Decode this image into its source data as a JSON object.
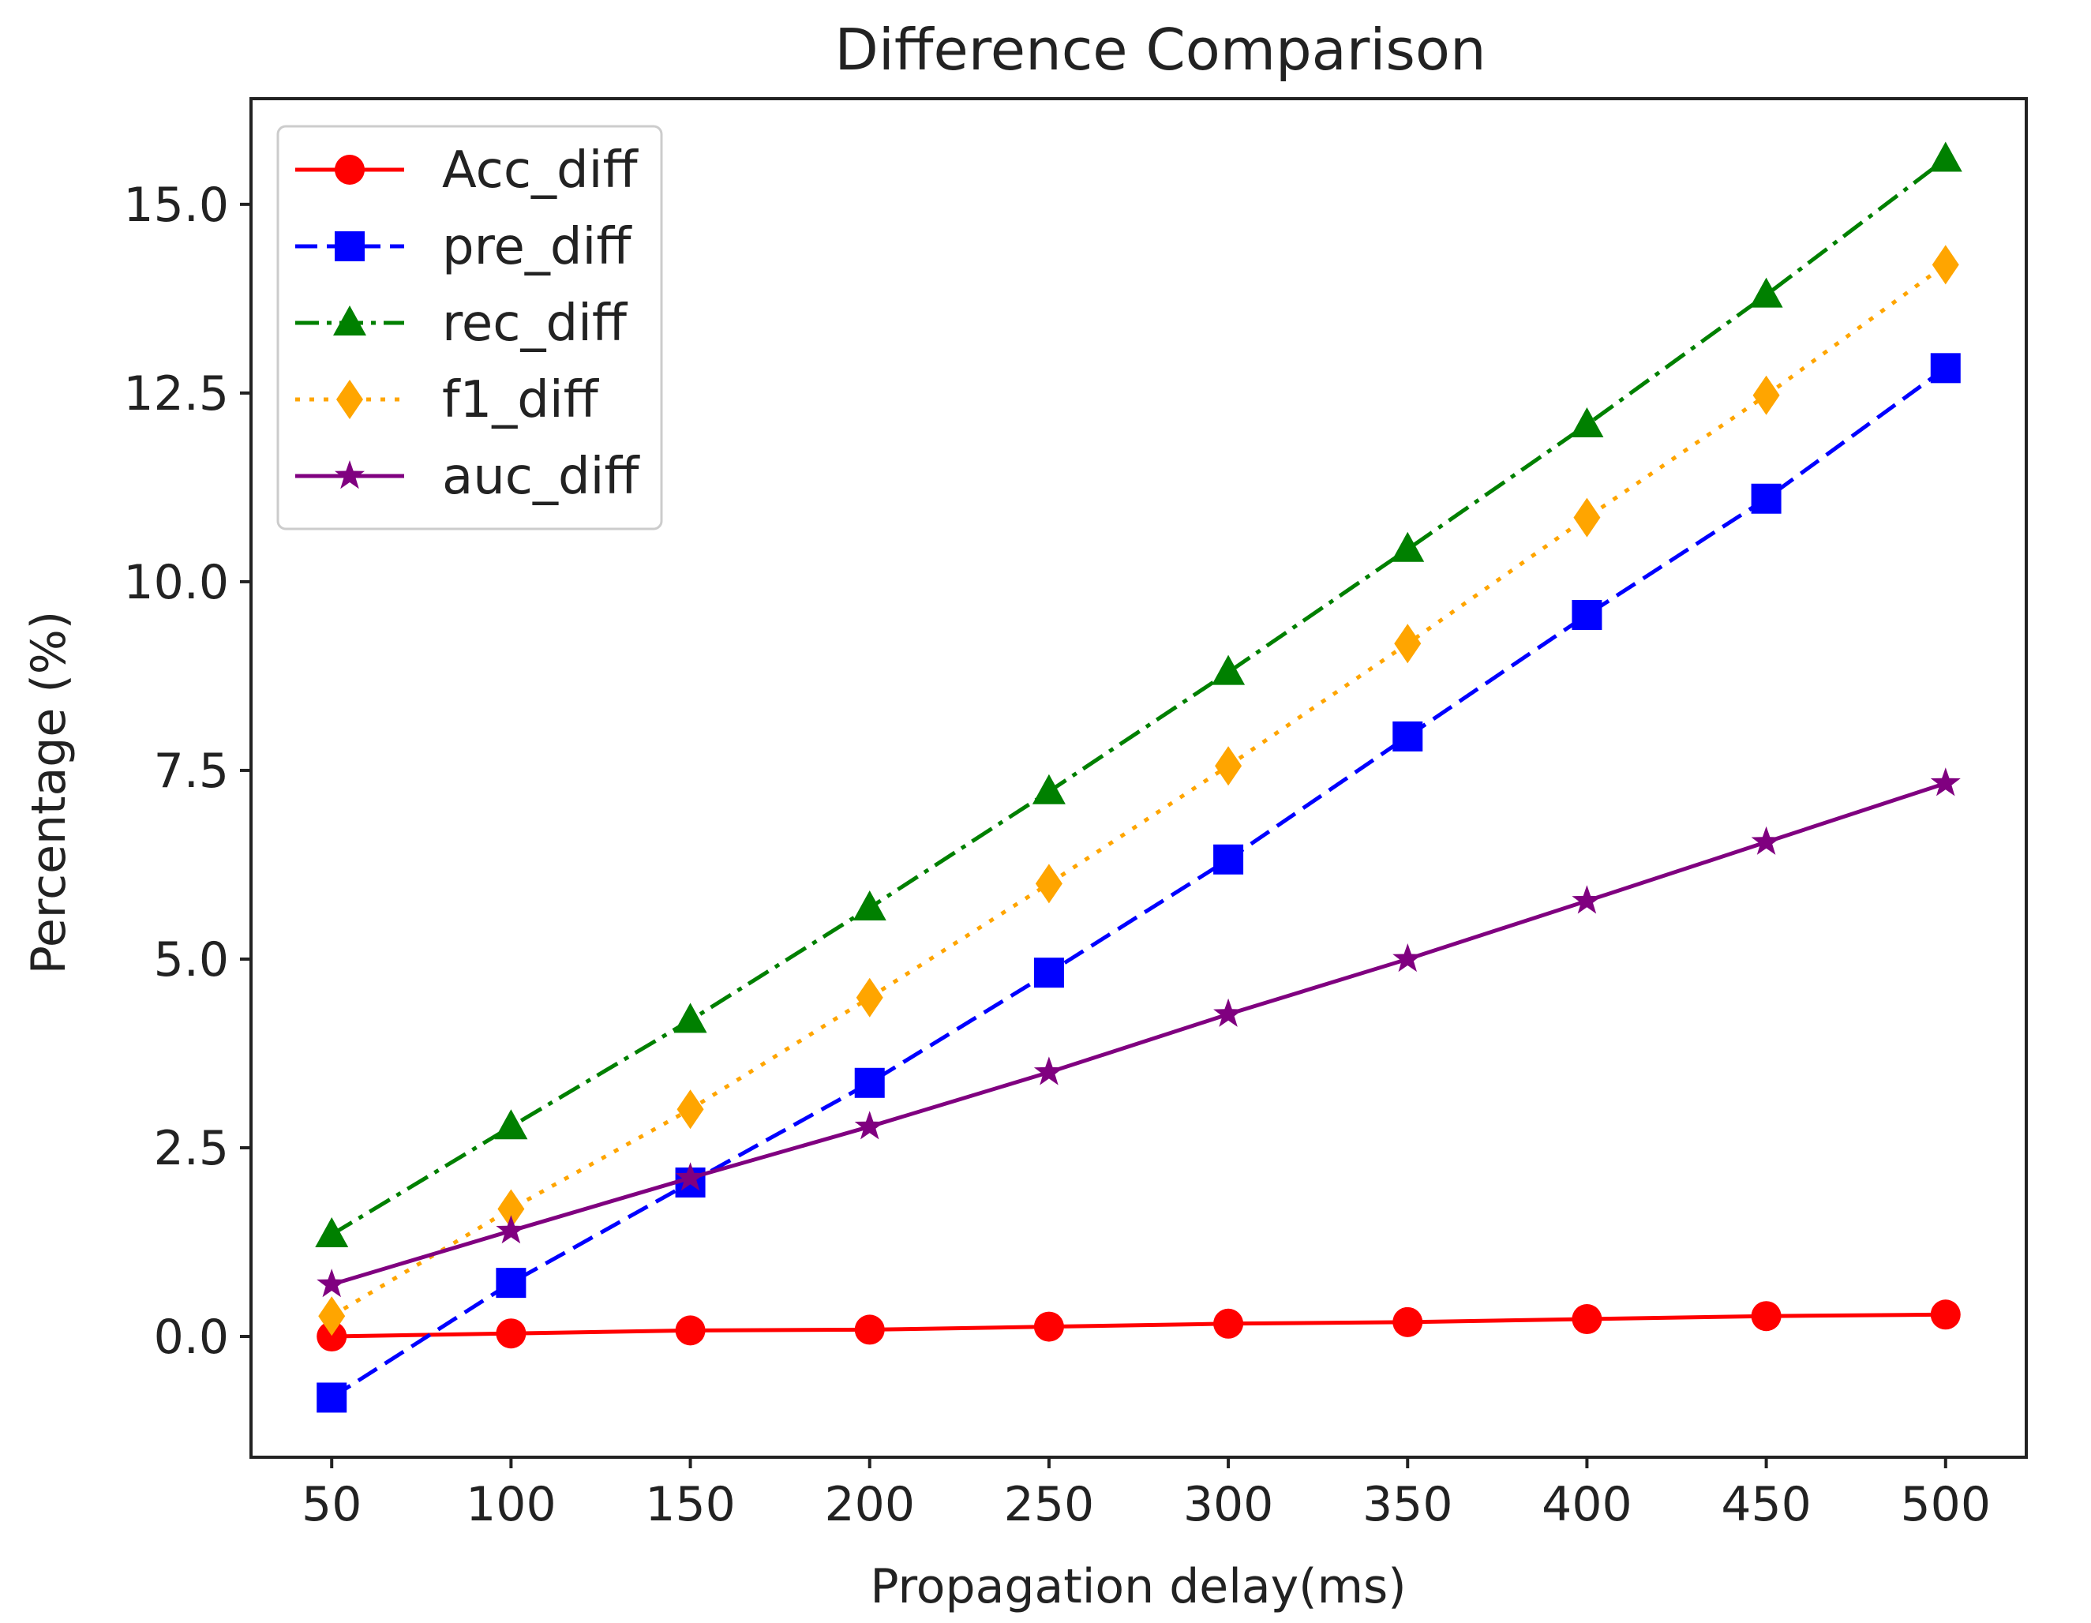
{
  "chart_data": {
    "type": "line",
    "title": "Difference Comparison",
    "xlabel": "Propagation delay(ms)",
    "ylabel": "Percentage (%)",
    "x": [
      50,
      100,
      150,
      200,
      250,
      300,
      350,
      400,
      450,
      500
    ],
    "x_tick_labels": [
      "50",
      "100",
      "150",
      "200",
      "250",
      "300",
      "350",
      "400",
      "450",
      "500"
    ],
    "y_ticks": [
      0.0,
      2.5,
      5.0,
      7.5,
      10.0,
      12.5,
      15.0
    ],
    "y_tick_labels": [
      "0.0",
      "2.5",
      "5.0",
      "7.5",
      "10.0",
      "12.5",
      "15.0"
    ],
    "xlim": [
      27.5,
      522.5
    ],
    "ylim": [
      -1.6,
      16.4
    ],
    "grid": false,
    "legend_position": "upper-left",
    "series": [
      {
        "name": "Acc_diff",
        "color": "#ff0000",
        "line_style": "solid",
        "marker": "circle",
        "values": [
          0.0,
          0.04,
          0.08,
          0.09,
          0.13,
          0.17,
          0.19,
          0.23,
          0.27,
          0.29
        ]
      },
      {
        "name": "pre_diff",
        "color": "#0000ff",
        "line_style": "dashed",
        "marker": "square",
        "values": [
          -0.81,
          0.71,
          2.04,
          3.36,
          4.82,
          6.32,
          7.95,
          9.56,
          11.1,
          12.83
        ]
      },
      {
        "name": "rec_diff",
        "color": "#008000",
        "line_style": "dashdot",
        "marker": "triangle",
        "values": [
          1.35,
          2.78,
          4.19,
          5.68,
          7.22,
          8.8,
          10.43,
          12.08,
          13.8,
          15.6
        ]
      },
      {
        "name": "f1_diff",
        "color": "#ffa500",
        "line_style": "dotted",
        "marker": "diamond",
        "values": [
          0.27,
          1.69,
          3.01,
          4.49,
          6.0,
          7.56,
          9.18,
          10.85,
          12.47,
          14.2
        ]
      },
      {
        "name": "auc_diff",
        "color": "#800080",
        "line_style": "solid",
        "marker": "star",
        "values": [
          0.69,
          1.4,
          2.1,
          2.78,
          3.5,
          4.27,
          5.0,
          5.77,
          6.55,
          7.33
        ]
      }
    ]
  }
}
